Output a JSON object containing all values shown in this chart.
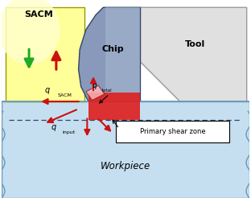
{
  "fig_width": 3.12,
  "fig_height": 2.46,
  "dpi": 100,
  "bg_color": "#ffffff",
  "workpiece_color": "#c5dff0",
  "sacm_yellow": "#ffff99",
  "sacm_yellow_bright": "#ffffcc",
  "chip_color": "#8899bb",
  "chip_color2": "#aabbd4",
  "tool_color": "#e0e0e0",
  "shear_zone_color": "#dd2222",
  "arrow_red": "#cc1111",
  "arrow_green": "#22aa22",
  "workpiece_border": "#6699bb",
  "xlim": [
    0,
    10
  ],
  "ylim": [
    0,
    8
  ]
}
